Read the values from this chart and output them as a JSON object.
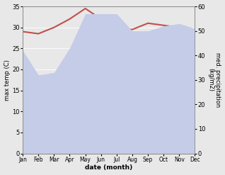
{
  "months": [
    "Jan",
    "Feb",
    "Mar",
    "Apr",
    "May",
    "Jun",
    "Jul",
    "Aug",
    "Sep",
    "Oct",
    "Nov",
    "Dec"
  ],
  "temperature": [
    29.0,
    28.5,
    30.0,
    32.0,
    34.5,
    32.0,
    30.0,
    29.5,
    31.0,
    30.5,
    30.0,
    29.5
  ],
  "precipitation": [
    42,
    32,
    33,
    43,
    57,
    57,
    57,
    50,
    50,
    52,
    53,
    51
  ],
  "temp_color": "#c0504d",
  "precip_fill_color": "#c5cce8",
  "temp_ylim": [
    0,
    35
  ],
  "precip_ylim": [
    0,
    60
  ],
  "xlabel": "date (month)",
  "ylabel_left": "max temp (C)",
  "ylabel_right": "med. precipitation\n(kg/m2)",
  "temp_linewidth": 1.5,
  "fig_bg": "#e8e8e8",
  "plot_bg": "#e8e8e8"
}
